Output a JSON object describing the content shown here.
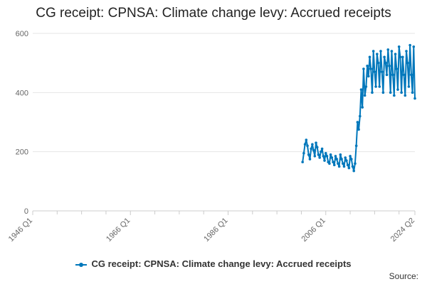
{
  "title": "CG receipt: CPNSA: Climate change levy: Accrued receipts",
  "source_label": "Source:",
  "colors": {
    "series": "#0077bb"
  },
  "chart_data": {
    "type": "line",
    "title": "CG receipt: CPNSA: Climate change levy: Accrued receipts",
    "xlabel": "",
    "ylabel": "",
    "x_tick_labels": [
      "1946 Q1",
      "1966 Q1",
      "1986 Q1",
      "2006 Q1",
      "2024 Q2"
    ],
    "x_tick_positions": [
      1946.0,
      1966.0,
      1986.0,
      2006.0,
      2024.25
    ],
    "y_ticks": [
      0,
      200,
      400,
      600
    ],
    "ylim": [
      0,
      600
    ],
    "xlim": [
      1946.0,
      2024.25
    ],
    "grid": true,
    "legend_position": "bottom",
    "series": [
      {
        "name": "CG receipt: CPNSA: Climate change levy: Accrued receipts",
        "x": [
          2001.25,
          2001.5,
          2001.75,
          2002.0,
          2002.25,
          2002.5,
          2002.75,
          2003.0,
          2003.25,
          2003.5,
          2003.75,
          2004.0,
          2004.25,
          2004.5,
          2004.75,
          2005.0,
          2005.25,
          2005.5,
          2005.75,
          2006.0,
          2006.25,
          2006.5,
          2006.75,
          2007.0,
          2007.25,
          2007.5,
          2007.75,
          2008.0,
          2008.25,
          2008.5,
          2008.75,
          2009.0,
          2009.25,
          2009.5,
          2009.75,
          2010.0,
          2010.25,
          2010.5,
          2010.75,
          2011.0,
          2011.25,
          2011.5,
          2011.75,
          2012.0,
          2012.25,
          2012.5,
          2012.75,
          2013.0,
          2013.25,
          2013.5,
          2013.75,
          2014.0,
          2014.25,
          2014.5,
          2014.75,
          2015.0,
          2015.25,
          2015.5,
          2015.75,
          2016.0,
          2016.25,
          2016.5,
          2016.75,
          2017.0,
          2017.25,
          2017.5,
          2017.75,
          2018.0,
          2018.25,
          2018.5,
          2018.75,
          2019.0,
          2019.25,
          2019.5,
          2019.75,
          2020.0,
          2020.25,
          2020.5,
          2020.75,
          2021.0,
          2021.25,
          2021.5,
          2021.75,
          2022.0,
          2022.25,
          2022.5,
          2022.75,
          2023.0,
          2023.25,
          2023.5,
          2023.75,
          2024.0,
          2024.25
        ],
        "values": [
          165,
          195,
          225,
          240,
          220,
          190,
          175,
          210,
          225,
          205,
          185,
          230,
          215,
          190,
          180,
          200,
          210,
          185,
          170,
          195,
          185,
          165,
          160,
          190,
          180,
          165,
          155,
          185,
          175,
          160,
          150,
          190,
          175,
          160,
          150,
          180,
          170,
          155,
          145,
          185,
          175,
          150,
          135,
          160,
          220,
          300,
          275,
          320,
          410,
          350,
          480,
          390,
          420,
          490,
          455,
          520,
          480,
          400,
          540,
          470,
          420,
          530,
          500,
          420,
          540,
          470,
          400,
          520,
          500,
          460,
          545,
          490,
          400,
          540,
          460,
          390,
          530,
          480,
          410,
          555,
          520,
          400,
          520,
          460,
          390,
          540,
          500,
          420,
          560,
          460,
          400,
          555,
          380
        ]
      }
    ]
  }
}
